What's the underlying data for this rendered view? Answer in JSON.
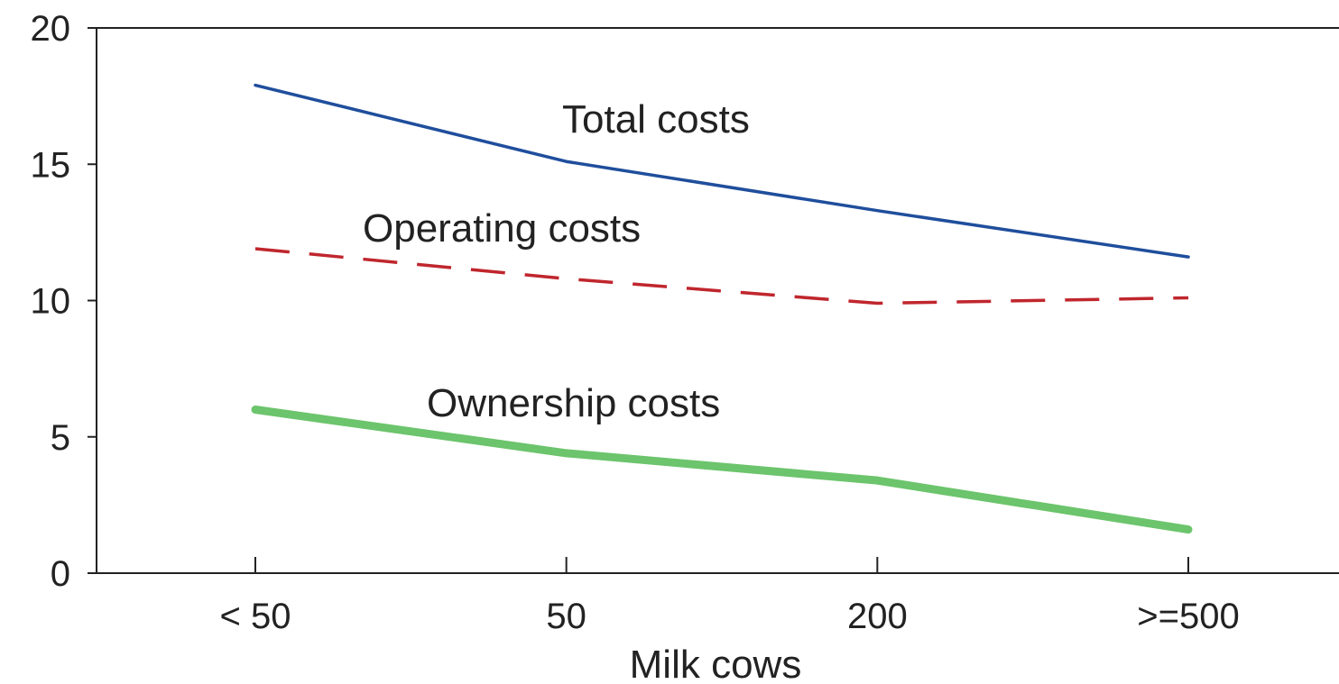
{
  "chart_data": {
    "type": "line",
    "title": "",
    "xlabel": "Milk cows",
    "ylabel": "",
    "categories": [
      "< 50",
      "50",
      "200",
      ">=500"
    ],
    "ylim": [
      0,
      20
    ],
    "yticks": [
      0,
      5,
      10,
      15,
      20
    ],
    "grid": false,
    "legend": "inline labels",
    "series": [
      {
        "name": "Total costs",
        "values": [
          17.9,
          15.1,
          13.3,
          11.6
        ],
        "color": "#1f4e9c",
        "style": "solid-thin"
      },
      {
        "name": "Operating costs",
        "values": [
          11.9,
          10.8,
          9.9,
          10.1
        ],
        "color": "#c0262d",
        "style": "dashed"
      },
      {
        "name": "Ownership costs",
        "values": [
          6.0,
          4.4,
          3.4,
          1.6
        ],
        "color": "#6cc46c",
        "style": "solid-thick"
      }
    ]
  }
}
